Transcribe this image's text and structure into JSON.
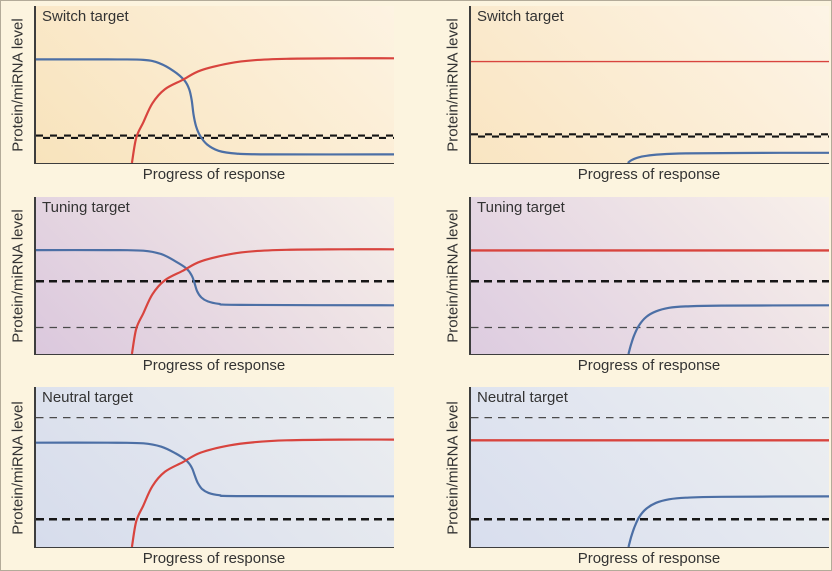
{
  "page": {
    "background": "#fcf4df",
    "border_color": "#b3ab99"
  },
  "colors": {
    "blue_curve": "#4c6fa5",
    "red_curve": "#d8443e",
    "threshold_bold": "#161616",
    "threshold_light": "#4a4a4a",
    "axis_spine": "#3d3d3d",
    "text": "#333333"
  },
  "chart_data": [
    {
      "id": "switch-left",
      "type": "line",
      "title": "Switch target",
      "xlabel": "Progress of response",
      "ylabel": "Protein/miRNA level",
      "x_range": [
        0,
        1
      ],
      "y_range": [
        0,
        1
      ],
      "ticks": "none",
      "grid": false,
      "legend": "none",
      "background_gradient": [
        "#f8e3bc",
        "#fdf3e2"
      ],
      "thresholds": [
        {
          "y": 0.167,
          "style": "bold-zigzag"
        }
      ],
      "series": [
        {
          "name": "blue-curve",
          "color": "#4c6fa5",
          "width": 2.2,
          "points": [
            [
              0,
              0.66
            ],
            [
              0.2,
              0.66
            ],
            [
              0.3,
              0.657
            ],
            [
              0.345,
              0.635
            ],
            [
              0.385,
              0.585
            ],
            [
              0.415,
              0.525
            ],
            [
              0.428,
              0.47
            ],
            [
              0.435,
              0.4
            ],
            [
              0.44,
              0.31
            ],
            [
              0.447,
              0.235
            ],
            [
              0.458,
              0.175
            ],
            [
              0.478,
              0.118
            ],
            [
              0.51,
              0.078
            ],
            [
              0.56,
              0.06
            ],
            [
              0.65,
              0.055
            ],
            [
              1,
              0.055
            ]
          ]
        },
        {
          "name": "red-curve",
          "color": "#d8443e",
          "width": 2.2,
          "points": [
            [
              0.268,
              0
            ],
            [
              0.28,
              0.16
            ],
            [
              0.3,
              0.26
            ],
            [
              0.325,
              0.38
            ],
            [
              0.36,
              0.47
            ],
            [
              0.41,
              0.53
            ],
            [
              0.46,
              0.59
            ],
            [
              0.54,
              0.635
            ],
            [
              0.61,
              0.655
            ],
            [
              0.7,
              0.664
            ],
            [
              0.85,
              0.667
            ],
            [
              1,
              0.667
            ]
          ]
        }
      ]
    },
    {
      "id": "switch-right",
      "type": "line",
      "title": "Switch target",
      "xlabel": "Progress of response",
      "ylabel": "Protein/miRNA level",
      "x_range": [
        0,
        1
      ],
      "y_range": [
        0,
        1
      ],
      "ticks": "none",
      "grid": false,
      "legend": "none",
      "background_gradient": [
        "#f9e5c2",
        "#fdf4e6"
      ],
      "thresholds": [
        {
          "y": 0.175,
          "style": "bold-zigzag"
        }
      ],
      "series": [
        {
          "name": "blue-curve",
          "color": "#4c6fa5",
          "width": 2.2,
          "points": [
            [
              0.438,
              0
            ],
            [
              0.448,
              0.018
            ],
            [
              0.465,
              0.034
            ],
            [
              0.49,
              0.046
            ],
            [
              0.53,
              0.055
            ],
            [
              0.6,
              0.061
            ],
            [
              0.75,
              0.064
            ],
            [
              1,
              0.065
            ]
          ]
        },
        {
          "name": "red-curve",
          "color": "#d8443e",
          "width": 1.4,
          "points": [
            [
              0,
              0.646
            ],
            [
              1,
              0.646
            ]
          ]
        }
      ]
    },
    {
      "id": "tuning-left",
      "type": "line",
      "title": "Tuning target",
      "xlabel": "Progress of response",
      "ylabel": "Protein/miRNA level",
      "x_range": [
        0,
        1
      ],
      "y_range": [
        0,
        1
      ],
      "ticks": "none",
      "grid": false,
      "legend": "none",
      "background_gradient": [
        "#dbc8dd",
        "#f7efe9"
      ],
      "thresholds": [
        {
          "y": 0.464,
          "style": "bold"
        },
        {
          "y": 0.169,
          "style": "light"
        }
      ],
      "series": [
        {
          "name": "blue-curve",
          "color": "#4c6fa5",
          "width": 2.2,
          "points": [
            [
              0,
              0.662
            ],
            [
              0.2,
              0.662
            ],
            [
              0.3,
              0.658
            ],
            [
              0.35,
              0.636
            ],
            [
              0.39,
              0.59
            ],
            [
              0.42,
              0.545
            ],
            [
              0.435,
              0.5
            ],
            [
              0.443,
              0.45
            ],
            [
              0.45,
              0.4
            ],
            [
              0.462,
              0.36
            ],
            [
              0.48,
              0.335
            ],
            [
              0.51,
              0.32
            ],
            [
              0.57,
              0.313
            ],
            [
              1,
              0.31
            ]
          ]
        },
        {
          "name": "red-curve",
          "color": "#d8443e",
          "width": 2.2,
          "points": [
            [
              0.268,
              0
            ],
            [
              0.28,
              0.16
            ],
            [
              0.3,
              0.26
            ],
            [
              0.325,
              0.38
            ],
            [
              0.36,
              0.47
            ],
            [
              0.41,
              0.53
            ],
            [
              0.46,
              0.59
            ],
            [
              0.54,
              0.635
            ],
            [
              0.61,
              0.655
            ],
            [
              0.7,
              0.664
            ],
            [
              0.85,
              0.667
            ],
            [
              1,
              0.667
            ]
          ]
        }
      ]
    },
    {
      "id": "tuning-right",
      "type": "line",
      "title": "Tuning target",
      "xlabel": "Progress of response",
      "ylabel": "Protein/miRNA level",
      "x_range": [
        0,
        1
      ],
      "y_range": [
        0,
        1
      ],
      "ticks": "none",
      "grid": false,
      "legend": "none",
      "background_gradient": [
        "#ddcce0",
        "#f8f0ea"
      ],
      "thresholds": [
        {
          "y": 0.464,
          "style": "bold"
        },
        {
          "y": 0.169,
          "style": "light"
        }
      ],
      "series": [
        {
          "name": "blue-curve",
          "color": "#4c6fa5",
          "width": 2.2,
          "points": [
            [
              0.44,
              0
            ],
            [
              0.447,
              0.06
            ],
            [
              0.456,
              0.12
            ],
            [
              0.47,
              0.185
            ],
            [
              0.49,
              0.237
            ],
            [
              0.517,
              0.272
            ],
            [
              0.553,
              0.294
            ],
            [
              0.6,
              0.303
            ],
            [
              0.7,
              0.308
            ],
            [
              1,
              0.31
            ]
          ]
        },
        {
          "name": "red-curve",
          "color": "#d8443e",
          "width": 2.4,
          "points": [
            [
              0,
              0.66
            ],
            [
              1,
              0.66
            ]
          ]
        }
      ]
    },
    {
      "id": "neutral-left",
      "type": "line",
      "title": "Neutral target",
      "xlabel": "Progress of response",
      "ylabel": "Protein/miRNA level",
      "x_range": [
        0,
        1
      ],
      "y_range": [
        0,
        1
      ],
      "ticks": "none",
      "grid": false,
      "legend": "none",
      "background_gradient": [
        "#d6dcec",
        "#eceef0"
      ],
      "thresholds": [
        {
          "y": 0.809,
          "style": "light"
        },
        {
          "y": 0.174,
          "style": "bold"
        }
      ],
      "series": [
        {
          "name": "blue-curve",
          "color": "#4c6fa5",
          "width": 2.2,
          "points": [
            [
              0,
              0.652
            ],
            [
              0.2,
              0.652
            ],
            [
              0.3,
              0.648
            ],
            [
              0.35,
              0.627
            ],
            [
              0.39,
              0.585
            ],
            [
              0.42,
              0.54
            ],
            [
              0.435,
              0.497
            ],
            [
              0.443,
              0.45
            ],
            [
              0.452,
              0.4
            ],
            [
              0.464,
              0.362
            ],
            [
              0.482,
              0.338
            ],
            [
              0.512,
              0.324
            ],
            [
              0.57,
              0.318
            ],
            [
              1,
              0.317
            ]
          ]
        },
        {
          "name": "red-curve",
          "color": "#d8443e",
          "width": 2.2,
          "points": [
            [
              0.268,
              0
            ],
            [
              0.28,
              0.16
            ],
            [
              0.3,
              0.26
            ],
            [
              0.325,
              0.38
            ],
            [
              0.36,
              0.47
            ],
            [
              0.41,
              0.53
            ],
            [
              0.46,
              0.59
            ],
            [
              0.54,
              0.635
            ],
            [
              0.61,
              0.655
            ],
            [
              0.7,
              0.667
            ],
            [
              0.85,
              0.671
            ],
            [
              1,
              0.671
            ]
          ]
        }
      ]
    },
    {
      "id": "neutral-right",
      "type": "line",
      "title": "Neutral target",
      "xlabel": "Progress of response",
      "ylabel": "Protein/miRNA level",
      "x_range": [
        0,
        1
      ],
      "y_range": [
        0,
        1
      ],
      "ticks": "none",
      "grid": false,
      "legend": "none",
      "background_gradient": [
        "#d8deee",
        "#edeff1"
      ],
      "thresholds": [
        {
          "y": 0.809,
          "style": "light"
        },
        {
          "y": 0.174,
          "style": "bold"
        }
      ],
      "series": [
        {
          "name": "blue-curve",
          "color": "#4c6fa5",
          "width": 2.2,
          "points": [
            [
              0.44,
              0
            ],
            [
              0.447,
              0.06
            ],
            [
              0.456,
              0.12
            ],
            [
              0.47,
              0.188
            ],
            [
              0.49,
              0.24
            ],
            [
              0.517,
              0.276
            ],
            [
              0.553,
              0.298
            ],
            [
              0.6,
              0.308
            ],
            [
              0.7,
              0.314
            ],
            [
              1,
              0.316
            ]
          ]
        },
        {
          "name": "red-curve",
          "color": "#d8443e",
          "width": 2.4,
          "points": [
            [
              0,
              0.667
            ],
            [
              1,
              0.667
            ]
          ]
        }
      ]
    }
  ]
}
